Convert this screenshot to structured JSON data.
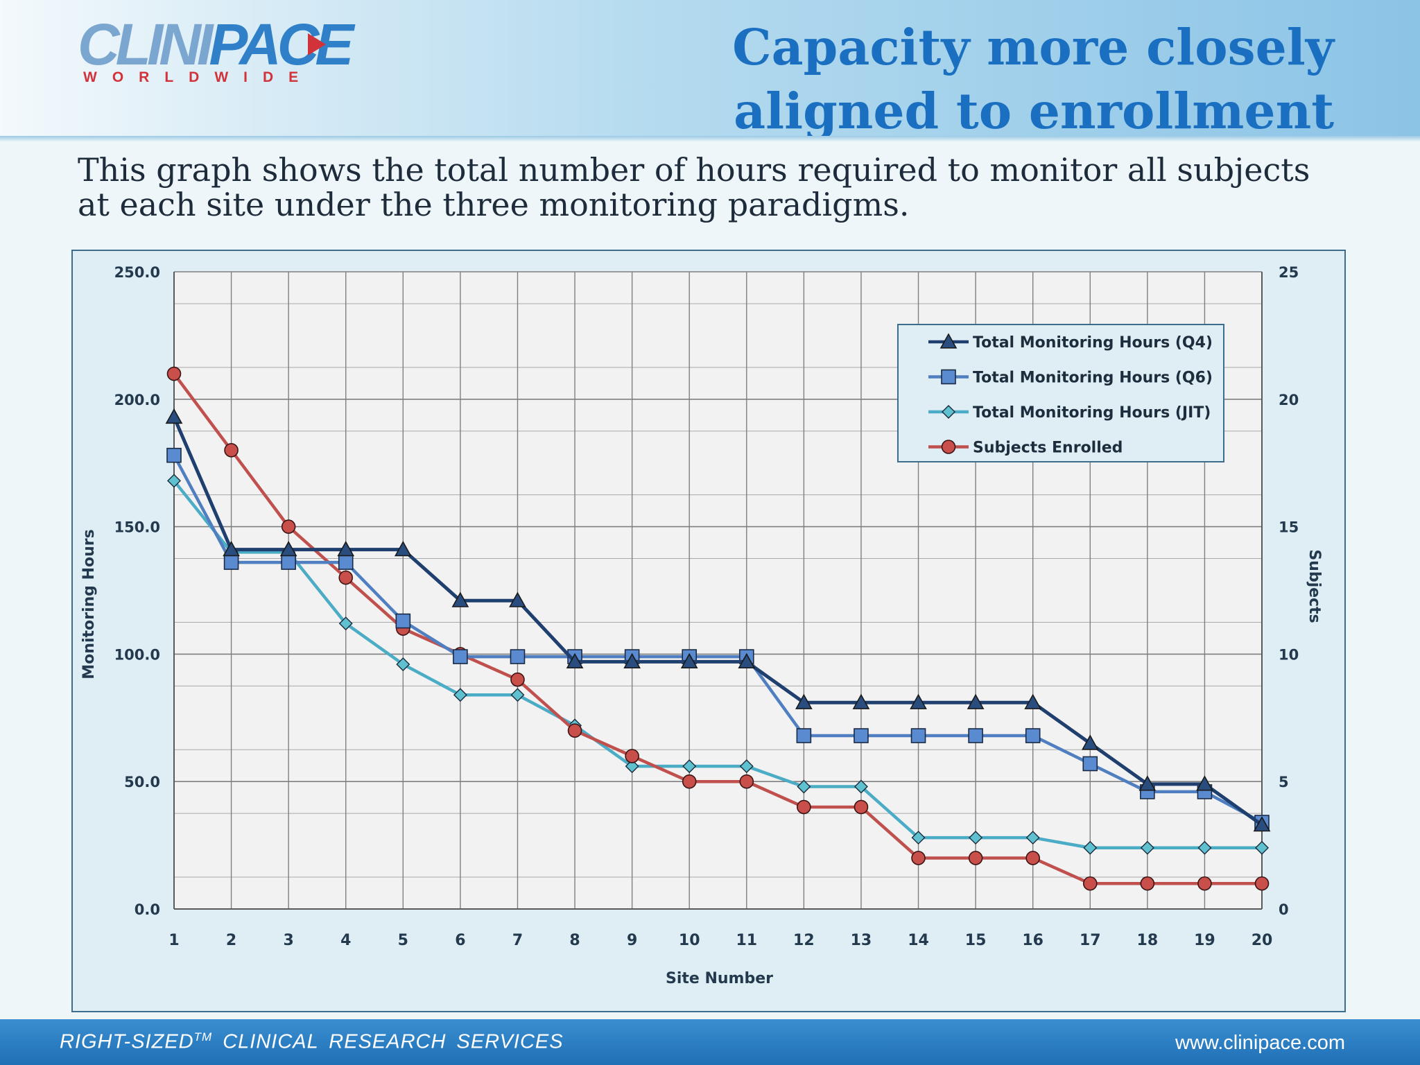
{
  "header": {
    "logo": {
      "brand_part1": "CLINI",
      "brand_part2": "PACE",
      "tagline": "WORLDWIDE"
    },
    "title_line1": "Capacity more closely",
    "title_line2": "aligned to enrollment"
  },
  "subtitle": "This graph shows the total number of hours required to monitor all subjects at each site under the three monitoring paradigms.",
  "footer": {
    "left_main": "RIGHT-SIZED",
    "left_sup": "TM",
    "left_rest": " CLINICAL  RESEARCH  SERVICES",
    "right": "www.clinipace.com"
  },
  "colors": {
    "q4": "#1f3f6e",
    "q6": "#4f7fc0",
    "jit": "#4bacc6",
    "enrolled": "#c0504d",
    "plot_bg": "#f2f2f2",
    "grid": "#7f7f7f"
  },
  "chart_data": {
    "type": "line",
    "title": "",
    "xlabel": "Site Number",
    "ylabel": "Monitoring Hours",
    "y2label": "Subjects",
    "x": [
      1,
      2,
      3,
      4,
      5,
      6,
      7,
      8,
      9,
      10,
      11,
      12,
      13,
      14,
      15,
      16,
      17,
      18,
      19,
      20
    ],
    "ylim": [
      0,
      250
    ],
    "y2lim": [
      0,
      25
    ],
    "yticks": [
      "0.0",
      "50.0",
      "100.0",
      "150.0",
      "200.0",
      "250.0"
    ],
    "y2ticks": [
      "0",
      "5",
      "10",
      "15",
      "20",
      "25"
    ],
    "grid": true,
    "legend_position": "top-right",
    "series": [
      {
        "name": "Total Monitoring Hours (Q4)",
        "axis": "left",
        "marker": "triangle",
        "values": [
          193,
          141,
          141,
          141,
          141,
          121,
          121,
          97,
          97,
          97,
          97,
          81,
          81,
          81,
          81,
          81,
          65,
          49,
          49,
          33
        ]
      },
      {
        "name": "Total Monitoring Hours (Q6)",
        "axis": "left",
        "marker": "square",
        "values": [
          178,
          136,
          136,
          136,
          113,
          99,
          99,
          99,
          99,
          99,
          99,
          68,
          68,
          68,
          68,
          68,
          57,
          46,
          46,
          34
        ]
      },
      {
        "name": "Total Monitoring Hours (JIT)",
        "axis": "left",
        "marker": "diamond",
        "values": [
          168,
          140,
          140,
          112,
          96,
          84,
          84,
          72,
          56,
          56,
          56,
          48,
          48,
          28,
          28,
          28,
          24,
          24,
          24,
          24
        ]
      },
      {
        "name": "Subjects Enrolled",
        "axis": "right",
        "marker": "circle",
        "values": [
          21,
          18,
          15,
          13,
          11,
          10,
          9,
          7,
          6,
          5,
          5,
          4,
          4,
          2,
          2,
          2,
          1,
          1,
          1,
          1
        ]
      }
    ]
  }
}
